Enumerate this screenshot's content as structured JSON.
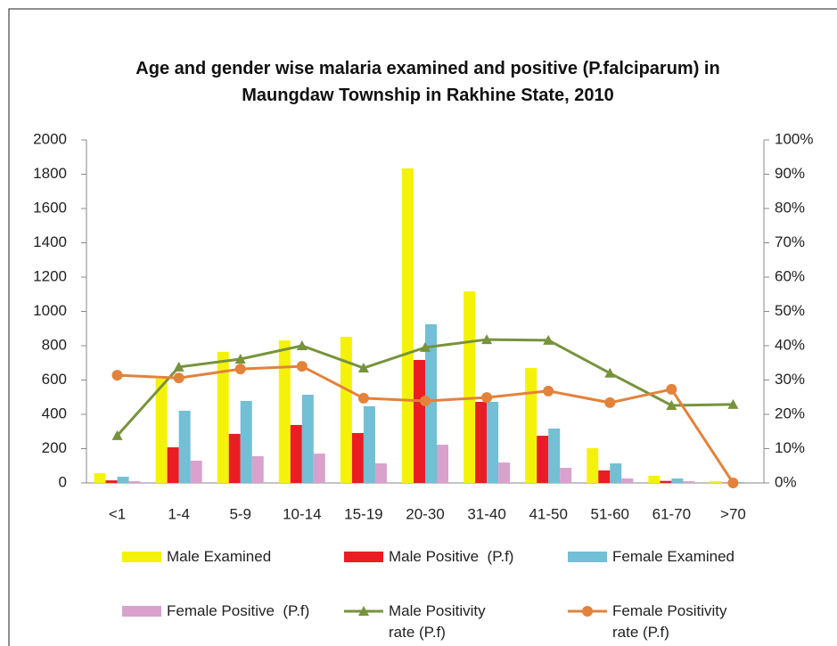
{
  "chart_data": {
    "type": "bar",
    "title": "Age and gender wise malaria examined and positive (P.falciparum) in Maungdaw Township in Rakhine State, 2010",
    "categories": [
      "<1",
      "1-4",
      "5-9",
      "10-14",
      "15-19",
      "20-30",
      "31-40",
      "41-50",
      "51-60",
      "61-70",
      ">70"
    ],
    "series": [
      {
        "name": "Male Examined",
        "type": "bar",
        "color": "#f5f20a",
        "values": [
          57,
          608,
          764,
          831,
          852,
          1834,
          1117,
          670,
          203,
          42,
          10
        ]
      },
      {
        "name": "Male Positive  (P.f)",
        "type": "bar",
        "color": "#ea1d24",
        "values": [
          15,
          208,
          286,
          338,
          291,
          717,
          473,
          275,
          73,
          12,
          2
        ]
      },
      {
        "name": "Female Examined",
        "type": "bar",
        "color": "#72bfd6",
        "values": [
          36,
          421,
          478,
          514,
          447,
          925,
          473,
          317,
          114,
          26,
          5
        ]
      },
      {
        "name": "Female Positive  (P.f)",
        "type": "bar",
        "color": "#d9a1cb",
        "values": [
          10,
          130,
          156,
          171,
          114,
          223,
          119,
          88,
          26,
          10,
          0
        ]
      },
      {
        "name": "Male Positivity rate (P.f)",
        "type": "line",
        "axis": "y2",
        "marker": "triangle",
        "color": "#77933c",
        "values": [
          13.8,
          33.8,
          36.1,
          40,
          33.5,
          39.5,
          41.8,
          41.6,
          32,
          22.6,
          22.9
        ]
      },
      {
        "name": "Female Positivity rate (P.f)",
        "type": "line",
        "axis": "y2",
        "marker": "circle",
        "color": "#e3823b",
        "values": [
          31.4,
          30.6,
          33.2,
          34,
          24.7,
          23.9,
          24.9,
          26.8,
          23.4,
          27.3,
          0
        ]
      }
    ],
    "ylim": [
      0,
      2000
    ],
    "yticks": [
      0,
      200,
      400,
      600,
      800,
      1000,
      1200,
      1400,
      1600,
      1800,
      2000
    ],
    "y2lim": [
      0,
      100
    ],
    "y2ticks": [
      {
        "value": 0,
        "label": "0%"
      },
      {
        "value": 10,
        "label": "10%"
      },
      {
        "value": 20,
        "label": "20%"
      },
      {
        "value": 30,
        "label": "30%"
      },
      {
        "value": 40,
        "label": "40%"
      },
      {
        "value": 50,
        "label": "50%"
      },
      {
        "value": 60,
        "label": "60%"
      },
      {
        "value": 70,
        "label": "70%"
      },
      {
        "value": 80,
        "label": "80%"
      },
      {
        "value": 90,
        "label": "90%"
      },
      {
        "value": 100,
        "label": "100%"
      }
    ],
    "grid": false,
    "legend": "bottom"
  }
}
